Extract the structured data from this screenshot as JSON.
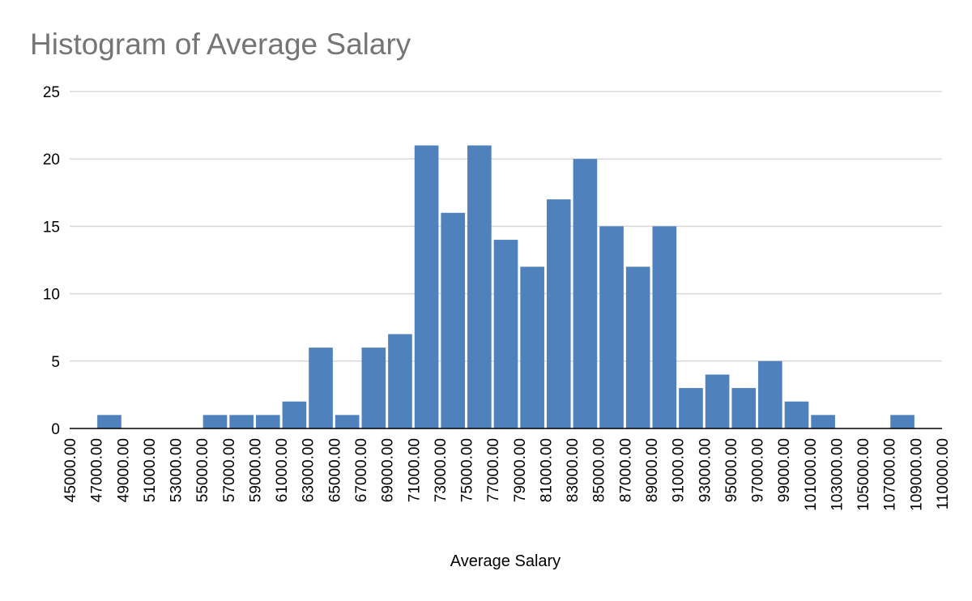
{
  "chart_data": {
    "type": "bar",
    "title": "Histogram of Average Salary",
    "xlabel": "Average Salary",
    "ylabel": "",
    "ylim": [
      0,
      25
    ],
    "yticks": [
      "0",
      "5",
      "10",
      "15",
      "20",
      "25"
    ],
    "bin_edges": [
      "45000.00",
      "47000.00",
      "49000.00",
      "51000.00",
      "53000.00",
      "55000.00",
      "57000.00",
      "59000.00",
      "61000.00",
      "63000.00",
      "65000.00",
      "67000.00",
      "69000.00",
      "71000.00",
      "73000.00",
      "75000.00",
      "77000.00",
      "79000.00",
      "81000.00",
      "83000.00",
      "85000.00",
      "87000.00",
      "89000.00",
      "91000.00",
      "93000.00",
      "95000.00",
      "97000.00",
      "99000.00",
      "101000.00",
      "103000.00",
      "105000.00",
      "107000.00",
      "109000.00",
      "110000.00"
    ],
    "values": [
      0,
      1,
      0,
      0,
      0,
      1,
      1,
      1,
      2,
      6,
      1,
      6,
      7,
      21,
      16,
      21,
      14,
      12,
      17,
      20,
      15,
      12,
      15,
      3,
      4,
      3,
      5,
      2,
      1,
      0,
      0,
      1,
      0
    ],
    "grid": true,
    "legend": "none",
    "bar_color": "#4f81bd"
  }
}
